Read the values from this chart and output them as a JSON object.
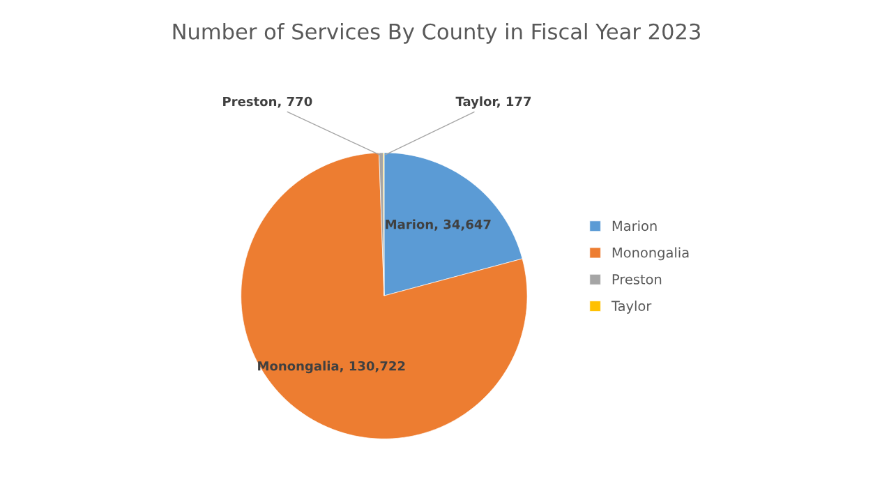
{
  "chart_data": {
    "type": "pie",
    "title": "Number of Services By County in Fiscal Year 2023",
    "categories": [
      "Marion",
      "Monongalia",
      "Preston",
      "Taylor"
    ],
    "values": [
      34647,
      130722,
      770,
      177
    ],
    "colors": [
      "#5b9bd5",
      "#ed7d31",
      "#a5a5a5",
      "#ffc000"
    ],
    "value_labels": [
      "Marion, 34,647",
      "Monongalia, 130,722",
      "Preston, 770",
      "Taylor, 177"
    ],
    "legend": "right"
  }
}
